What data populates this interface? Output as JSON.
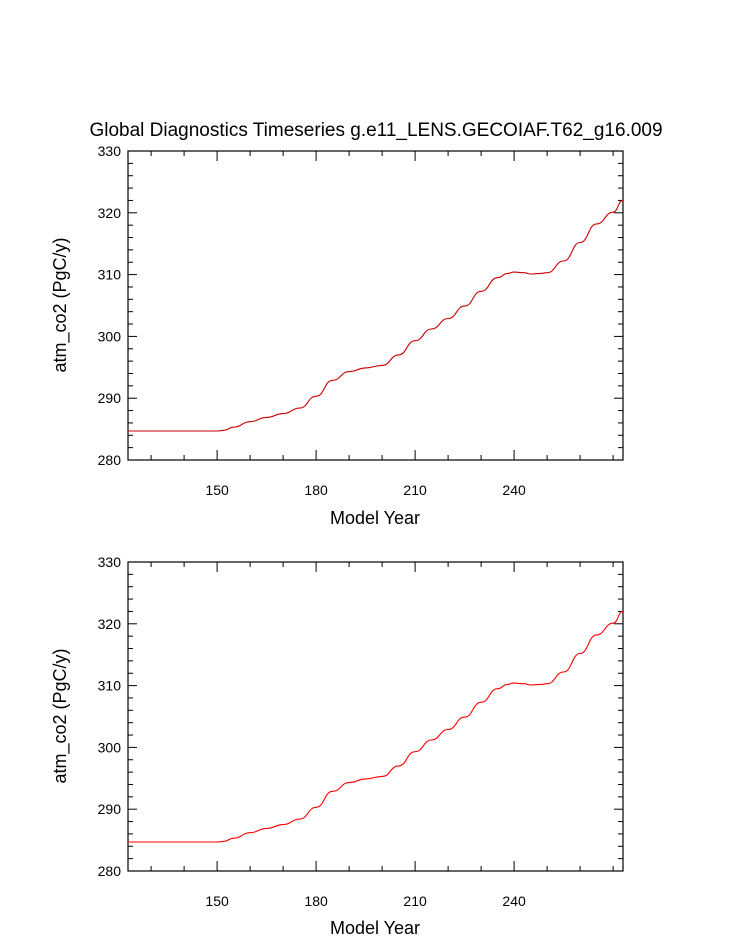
{
  "chart_data": [
    {
      "type": "line",
      "title": "Global Diagnostics Timeseries g.e11_LENS.GECOIAF.T62_g16.009",
      "xlabel": "Model Year",
      "ylabel": "atm_co2 (PgC/y)",
      "xlim": [
        123,
        273
      ],
      "ylim": [
        280,
        330
      ],
      "xticks": [
        150,
        180,
        210,
        240
      ],
      "xtick_labels": [
        "150",
        "180",
        "210",
        "240"
      ],
      "yticks": [
        280,
        290,
        300,
        310,
        320,
        330
      ],
      "ytick_labels": [
        "280",
        "290",
        "300",
        "310",
        "320",
        "330"
      ],
      "series": [
        {
          "name": "atm_co2",
          "color": "#cc0000",
          "x": [
            123,
            130,
            140,
            150,
            152,
            155,
            160,
            165,
            170,
            175,
            180,
            185,
            190,
            195,
            200,
            205,
            210,
            215,
            220,
            225,
            230,
            235,
            238,
            240,
            243,
            245,
            248,
            250,
            255,
            260,
            265,
            270,
            273
          ],
          "y": [
            284.7,
            284.7,
            284.7,
            284.7,
            284.8,
            285.3,
            286.2,
            286.9,
            287.5,
            288.4,
            290.3,
            292.9,
            294.3,
            294.9,
            295.3,
            297.0,
            299.3,
            301.2,
            302.9,
            304.9,
            307.3,
            309.5,
            310.2,
            310.4,
            310.3,
            310.1,
            310.2,
            310.3,
            312.2,
            315.2,
            318.2,
            320.1,
            322.0
          ]
        }
      ]
    },
    {
      "type": "line",
      "title": "",
      "xlabel": "Model Year",
      "ylabel": "atm_co2 (PgC/y)",
      "xlim": [
        123,
        273
      ],
      "ylim": [
        280,
        330
      ],
      "xticks": [
        150,
        180,
        210,
        240
      ],
      "xtick_labels": [
        "150",
        "180",
        "210",
        "240"
      ],
      "yticks": [
        280,
        290,
        300,
        310,
        320,
        330
      ],
      "ytick_labels": [
        "280",
        "290",
        "300",
        "310",
        "320",
        "330"
      ],
      "series": [
        {
          "name": "atm_co2",
          "color": "#ff0000",
          "x": [
            123,
            130,
            140,
            150,
            152,
            155,
            160,
            165,
            170,
            175,
            180,
            185,
            190,
            195,
            200,
            205,
            210,
            215,
            220,
            225,
            230,
            235,
            238,
            240,
            243,
            245,
            248,
            250,
            255,
            260,
            265,
            270,
            273
          ],
          "y": [
            284.7,
            284.7,
            284.7,
            284.7,
            284.8,
            285.3,
            286.2,
            286.9,
            287.5,
            288.4,
            290.3,
            292.9,
            294.3,
            294.9,
            295.3,
            297.0,
            299.3,
            301.2,
            302.9,
            304.9,
            307.3,
            309.5,
            310.2,
            310.4,
            310.3,
            310.1,
            310.2,
            310.3,
            312.2,
            315.2,
            318.2,
            320.1,
            322.0
          ]
        }
      ]
    }
  ]
}
